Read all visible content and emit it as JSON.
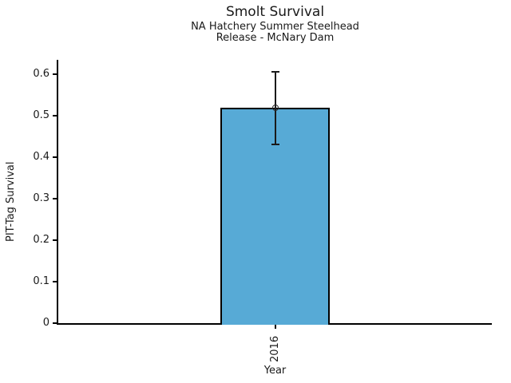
{
  "chart_data": {
    "type": "bar",
    "title": "Smolt Survival",
    "subtitle_lines": [
      "NA Hatchery Summer Steelhead",
      "Release - McNary Dam"
    ],
    "xlabel": "Year",
    "ylabel": "PIT-Tag Survival",
    "categories": [
      "2016"
    ],
    "values": [
      0.52
    ],
    "error_low": [
      0.43
    ],
    "error_high": [
      0.605
    ],
    "yticks": [
      0,
      0.1,
      0.2,
      0.3,
      0.4,
      0.5,
      0.6
    ],
    "ytick_labels": [
      "0",
      "0.1",
      "0.2",
      "0.3",
      "0.4",
      "0.5",
      "0.6"
    ],
    "ylim": [
      0,
      0.635
    ],
    "grid": false,
    "legend_position": "none",
    "marker": "open-circle",
    "colors": {
      "bar_fill": "#57AAD6",
      "bar_edge": "#000000",
      "error_bar": "#1a1a1a",
      "axis": "#000000",
      "text": "#1a1a1a",
      "background": "#ffffff"
    }
  }
}
